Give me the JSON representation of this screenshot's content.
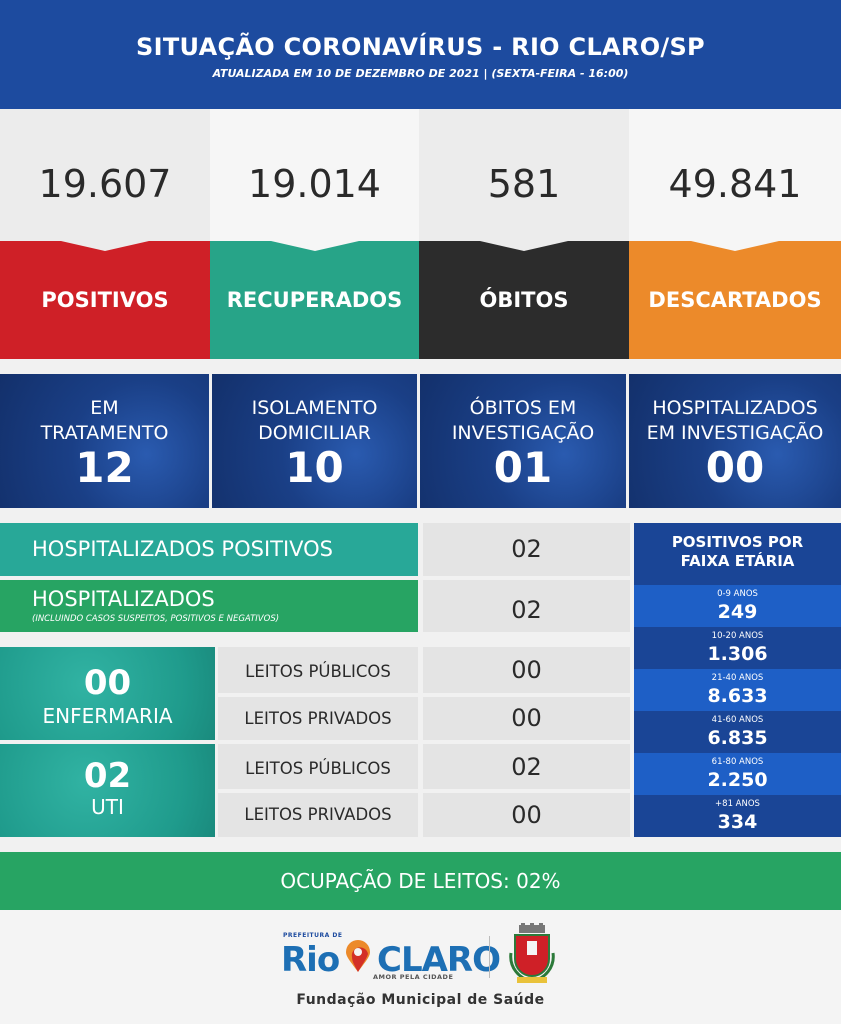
{
  "header": {
    "title": "SITUAÇÃO CORONAVÍRUS - RIO CLARO/SP",
    "subtitle": "ATUALIZADA EM 10 DE DEZEMBRO DE 2021 | (SEXTA-FEIRA - 16:00)",
    "color": "#1d4b9f"
  },
  "stats": [
    {
      "value": "19.607",
      "label": "POSITIVOS",
      "color": "#cf2027"
    },
    {
      "value": "19.014",
      "label": "RECUPERADOS",
      "color": "#27a488"
    },
    {
      "value": "581",
      "label": "ÓBITOS",
      "color": "#2c2c2c"
    },
    {
      "value": "49.841",
      "label": "DESCARTADOS",
      "color": "#ec8a2a"
    }
  ],
  "investigation": [
    {
      "label_line1": "EM",
      "label_line2": "TRATAMENTO",
      "value": "12"
    },
    {
      "label_line1": "ISOLAMENTO",
      "label_line2": "DOMICILIAR",
      "value": "10"
    },
    {
      "label_line1": "ÓBITOS EM",
      "label_line2": "INVESTIGAÇÃO",
      "value": "01"
    },
    {
      "label_line1": "HOSPITALIZADOS",
      "label_line2": "EM INVESTIGAÇÃO",
      "value": "00"
    }
  ],
  "hospital": {
    "positivos_label": "HOSPITALIZADOS POSITIVOS",
    "positivos_value": "02",
    "total_label": "HOSPITALIZADOS",
    "total_note": "(INCLUINDO CASOS SUSPEITOS, POSITIVOS E NEGATIVOS)",
    "total_value": "02"
  },
  "wards": [
    {
      "value": "00",
      "label": "ENFERMARIA",
      "beds": [
        {
          "label": "LEITOS PÚBLICOS",
          "value": "00"
        },
        {
          "label": "LEITOS PRIVADOS",
          "value": "00"
        }
      ]
    },
    {
      "value": "02",
      "label": "UTI",
      "beds": [
        {
          "label": "LEITOS PÚBLICOS",
          "value": "02"
        },
        {
          "label": "LEITOS PRIVADOS",
          "value": "00"
        }
      ]
    }
  ],
  "age": {
    "title_line1": "POSITIVOS POR",
    "title_line2": "FAIXA ETÁRIA",
    "rows": [
      {
        "range": "0-9 ANOS",
        "value": "249"
      },
      {
        "range": "10-20 ANOS",
        "value": "1.306"
      },
      {
        "range": "21-40 ANOS",
        "value": "8.633"
      },
      {
        "range": "41-60 ANOS",
        "value": "6.835"
      },
      {
        "range": "61-80 ANOS",
        "value": "2.250"
      },
      {
        "range": "+81 ANOS",
        "value": "334"
      }
    ]
  },
  "occupancy": "OCUPAÇÃO DE LEITOS: 02%",
  "footer": {
    "logo_prefix": "PREFEITURA DE",
    "logo_rio": "Rio",
    "logo_claro": "CLARO",
    "logo_tagline": "AMOR PELA CIDADE",
    "foundation": "Fundação Municipal de Saúde"
  }
}
